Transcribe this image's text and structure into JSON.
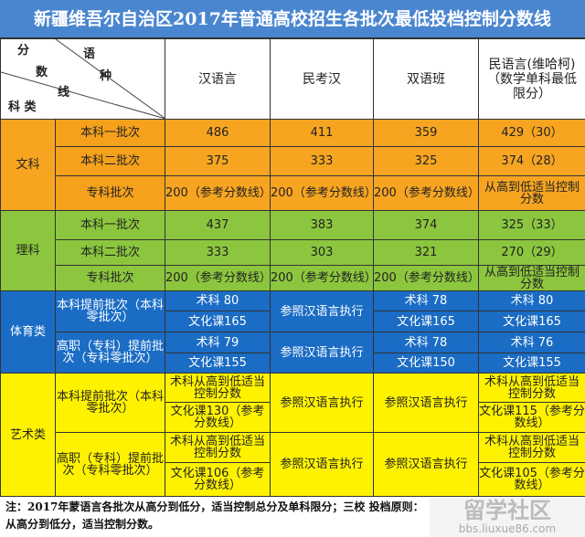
{
  "title": "新疆维吾尔自治区2017年普通高校招生各批次最低投档控制分数线",
  "header": {
    "diag_fen": "分",
    "diag_shu": "数",
    "diag_xian": "线",
    "diag_yu": "语",
    "diag_zhong": "种",
    "diag_kelei": "科 类",
    "columns": [
      "汉语言",
      "民考汉",
      "双语班",
      "民语言(维哈柯)（数学单科最低限分）"
    ]
  },
  "colors": {
    "title": "#4a86d0",
    "wenke": "#f7a521",
    "like": "#8cc63e",
    "tiyu": "#1a6cc4",
    "yishu": "#fff200"
  },
  "wenke": {
    "label": "文科",
    "rows": [
      {
        "batch": "本科一批次",
        "values": [
          "486",
          "411",
          "359",
          "429（30）"
        ]
      },
      {
        "batch": "本科二批次",
        "values": [
          "375",
          "333",
          "325",
          "374（28）"
        ]
      },
      {
        "batch": "专科批次",
        "values": [
          "200（参考分数线）",
          "200（参考分数线）",
          "200（参考分数线）",
          "从高到低适当控制分数"
        ]
      }
    ]
  },
  "like": {
    "label": "理科",
    "rows": [
      {
        "batch": "本科一批次",
        "values": [
          "437",
          "383",
          "374",
          "325（33）"
        ]
      },
      {
        "batch": "本科二批次",
        "values": [
          "333",
          "303",
          "321",
          "270（29）"
        ]
      },
      {
        "batch": "专科批次",
        "values": [
          "200（参考分数线）",
          "200（参考分数线）",
          "200（参考分数线）",
          "从高到低适当控制分数"
        ]
      }
    ]
  },
  "tiyu": {
    "label": "体育类",
    "groups": [
      {
        "batch": "本科提前批次（本科零批次）",
        "han": [
          "术科 80",
          "文化课165"
        ],
        "minkaohan": "参照汉语言执行",
        "shuangyu": [
          "术科 78",
          "文化课165"
        ],
        "minyu": [
          "术科 80",
          "文化课165"
        ]
      },
      {
        "batch": "高职（专科）提前批次（专科零批次）",
        "han": [
          "术科 79",
          "文化课155"
        ],
        "minkaohan": "参照汉语言执行",
        "shuangyu": [
          "术科 78",
          "文化课150"
        ],
        "minyu": [
          "术科 76",
          "文化课155"
        ]
      }
    ]
  },
  "yishu": {
    "label": "艺术类",
    "groups": [
      {
        "batch": "本科提前批次（本科零批次）",
        "han": [
          "术科从高到低适当控制分数",
          "文化课130（参考分数线）"
        ],
        "minkaohan": "参照汉语言执行",
        "shuangyu": "参照汉语言执行",
        "minyu": [
          "术科从高到低适当控制分数",
          "文化课115（参考分数线）"
        ]
      },
      {
        "batch": "高职（专科）提前批次（专科零批次）",
        "han": [
          "术科从高到低适当控制分数",
          "文化课106（参考分数线）"
        ],
        "minkaohan": "参照汉语言执行",
        "shuangyu": "参照汉语言执行",
        "minyu": [
          "术科从高到低适当控制分数",
          "文化课105（参考分数线）"
        ]
      }
    ]
  },
  "note": "注：2017年蒙语言各批次从高分到低分，适当控制总分及单科限分；三校 投档原则：从高分到低分，适当控制分数。",
  "watermark": {
    "logo": "留学社区",
    "url": "bbs.liuxue86.com"
  }
}
